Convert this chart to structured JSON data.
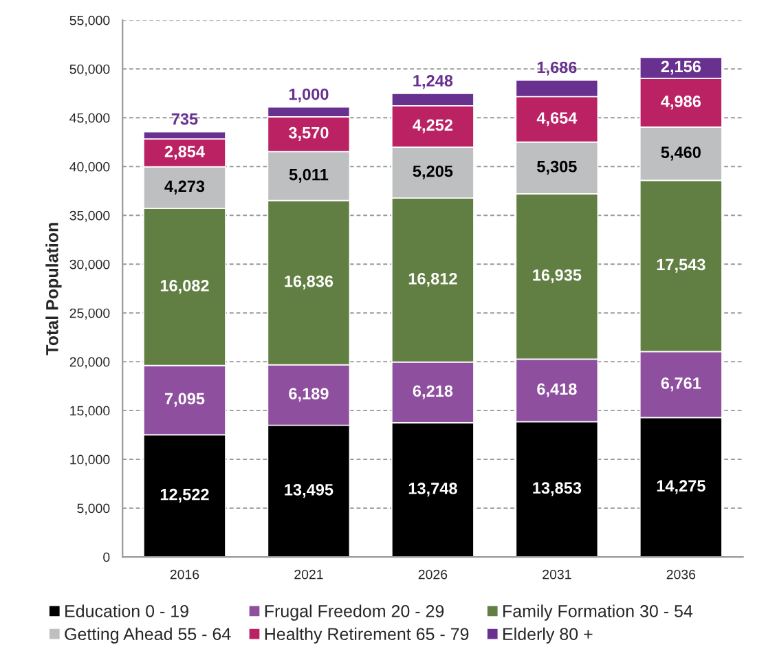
{
  "chart_data": {
    "type": "bar",
    "stacked": true,
    "ylabel": "Total Population",
    "categories": [
      "2016",
      "2021",
      "2026",
      "2031",
      "2036"
    ],
    "series": [
      {
        "name": "Education 0 - 19",
        "color": "#000000",
        "values": [
          12522,
          13495,
          13748,
          13853,
          14275
        ],
        "value_labels": [
          "12,522",
          "13,495",
          "13,748",
          "13,853",
          "14,275"
        ]
      },
      {
        "name": "Frugal Freedom 20 - 29",
        "color": "#8e4f9f",
        "values": [
          7095,
          6189,
          6218,
          6418,
          6761
        ],
        "value_labels": [
          "7,095",
          "6,189",
          "6,218",
          "6,418",
          "6,761"
        ]
      },
      {
        "name": "Family Formation 30 - 54",
        "color": "#627f43",
        "values": [
          16082,
          16836,
          16812,
          16935,
          17543
        ],
        "value_labels": [
          "16,082",
          "16,836",
          "16,812",
          "16,935",
          "17,543"
        ]
      },
      {
        "name": "Getting Ahead 55 - 64",
        "color": "#bebfc1",
        "values": [
          4273,
          5011,
          5205,
          5305,
          5460
        ],
        "value_labels": [
          "4,273",
          "5,011",
          "5,205",
          "5,305",
          "5,460"
        ]
      },
      {
        "name": "Healthy Retirement 65 - 79",
        "color": "#bb2263",
        "values": [
          2854,
          3570,
          4252,
          4654,
          4986
        ],
        "value_labels": [
          "2,854",
          "3,570",
          "4,252",
          "4,654",
          "4,986"
        ]
      },
      {
        "name": "Elderly 80 +",
        "color": "#68318f",
        "values": [
          735,
          1000,
          1248,
          1686,
          2156
        ],
        "value_labels": [
          "735",
          "1,000",
          "1,248",
          "1,686",
          "2,156"
        ]
      }
    ],
    "ylim": [
      0,
      55000
    ],
    "yticks": [
      {
        "value": 0,
        "label": "0"
      },
      {
        "value": 5000,
        "label": "5,000"
      },
      {
        "value": 10000,
        "label": "10,000"
      },
      {
        "value": 15000,
        "label": "15,000"
      },
      {
        "value": 20000,
        "label": "20,000"
      },
      {
        "value": 25000,
        "label": "25,000"
      },
      {
        "value": 30000,
        "label": "30,000"
      },
      {
        "value": 35000,
        "label": "35,000"
      },
      {
        "value": 40000,
        "label": "40,000"
      },
      {
        "value": 45000,
        "label": "45,000"
      },
      {
        "value": 50000,
        "label": "50,000"
      },
      {
        "value": 55000,
        "label": "55,000"
      }
    ],
    "grid": "y",
    "legend": "bottom"
  }
}
